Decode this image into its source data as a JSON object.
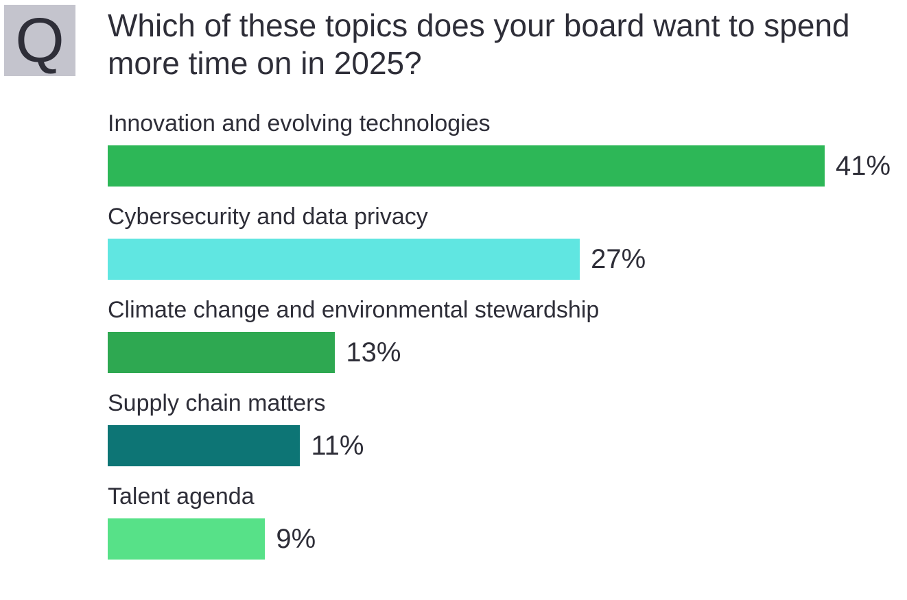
{
  "question_marker": "Q",
  "chart_data": {
    "type": "bar",
    "orientation": "horizontal",
    "title": "Which of these topics does your board want to spend more time on in 2025?",
    "categories": [
      "Innovation and evolving technologies",
      "Cybersecurity and data privacy",
      "Climate change and environmental stewardship",
      "Supply chain matters",
      "Talent agenda"
    ],
    "values": [
      41,
      27,
      13,
      11,
      9
    ],
    "value_labels": [
      "41%",
      "27%",
      "13%",
      "11%",
      "9%"
    ],
    "colors": [
      "#2db757",
      "#60e6e1",
      "#2ea851",
      "#0d7575",
      "#57e188"
    ],
    "xlabel": "",
    "ylabel": "",
    "xlim": [
      0,
      41
    ],
    "grid": false
  }
}
